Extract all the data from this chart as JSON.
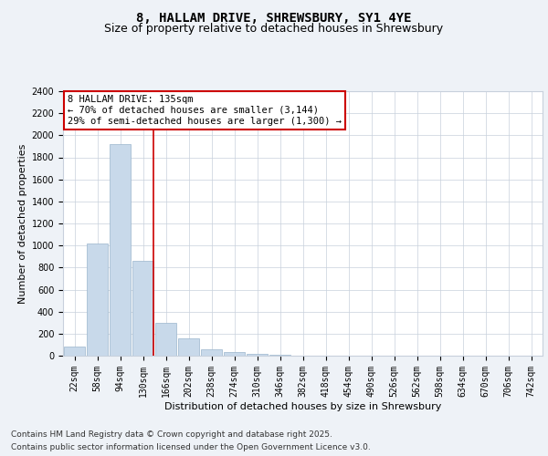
{
  "title": "8, HALLAM DRIVE, SHREWSBURY, SY1 4YE",
  "subtitle": "Size of property relative to detached houses in Shrewsbury",
  "xlabel": "Distribution of detached houses by size in Shrewsbury",
  "ylabel": "Number of detached properties",
  "footnote1": "Contains HM Land Registry data © Crown copyright and database right 2025.",
  "footnote2": "Contains public sector information licensed under the Open Government Licence v3.0.",
  "categories": [
    "22sqm",
    "58sqm",
    "94sqm",
    "130sqm",
    "166sqm",
    "202sqm",
    "238sqm",
    "274sqm",
    "310sqm",
    "346sqm",
    "382sqm",
    "418sqm",
    "454sqm",
    "490sqm",
    "526sqm",
    "562sqm",
    "598sqm",
    "634sqm",
    "670sqm",
    "706sqm",
    "742sqm"
  ],
  "values": [
    80,
    1020,
    1920,
    860,
    300,
    155,
    55,
    30,
    18,
    8,
    4,
    2,
    1,
    1,
    0,
    0,
    0,
    0,
    0,
    0,
    0
  ],
  "bar_color": "#c8d9ea",
  "bar_edge_color": "#9ab5cc",
  "highlight_index": 3,
  "highlight_line_color": "#cc0000",
  "annotation_box_text": "8 HALLAM DRIVE: 135sqm\n← 70% of detached houses are smaller (3,144)\n29% of semi-detached houses are larger (1,300) →",
  "annotation_box_color": "#cc0000",
  "ylim": [
    0,
    2400
  ],
  "yticks": [
    0,
    200,
    400,
    600,
    800,
    1000,
    1200,
    1400,
    1600,
    1800,
    2000,
    2200,
    2400
  ],
  "bg_color": "#eef2f7",
  "plot_bg_color": "#ffffff",
  "grid_color": "#c8d0dc",
  "title_fontsize": 10,
  "subtitle_fontsize": 9,
  "axis_label_fontsize": 8,
  "tick_fontsize": 7,
  "annotation_fontsize": 7.5,
  "footnote_fontsize": 6.5
}
